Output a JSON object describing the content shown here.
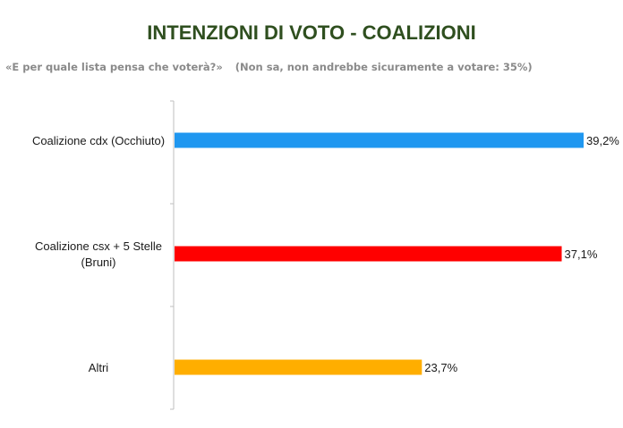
{
  "title": "INTENZIONI DI VOTO - COALIZIONI",
  "subtitle": {
    "question": "«E per quale lista pensa che voterà?»",
    "note": "(Non sa, non andrebbe sicuramente a votare: 35%)"
  },
  "chart_data": {
    "type": "bar",
    "orientation": "horizontal",
    "categories": [
      [
        "Coalizione cdx (Occhiuto)"
      ],
      [
        "Coalizione csx + 5 Stelle",
        "(Bruni)"
      ],
      [
        "Altri"
      ]
    ],
    "values": [
      39.2,
      37.1,
      23.7
    ],
    "value_labels": [
      "39,2%",
      "37,1%",
      "23,7%"
    ],
    "colors": [
      "#1f97f0",
      "#ff0000",
      "#ffae00"
    ],
    "xlim": [
      0,
      39.2
    ],
    "grid": false,
    "legend": "none"
  }
}
